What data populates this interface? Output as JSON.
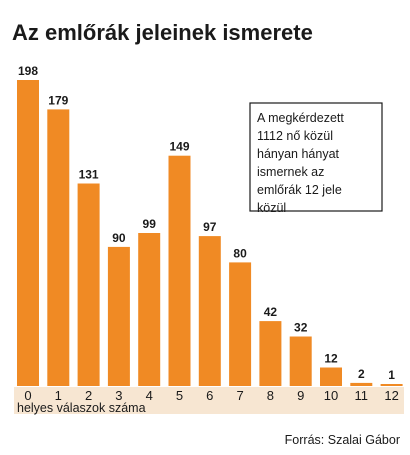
{
  "chart_data": {
    "type": "bar",
    "title": "Az emlőrák jeleinek ismerete",
    "xlabel": "helyes válaszok száma",
    "ylabel": "",
    "categories": [
      "0",
      "1",
      "2",
      "3",
      "4",
      "5",
      "6",
      "7",
      "8",
      "9",
      "10",
      "11",
      "12"
    ],
    "values": [
      198,
      179,
      131,
      90,
      99,
      149,
      97,
      80,
      42,
      32,
      12,
      2,
      1
    ],
    "ylim": [
      0,
      198
    ],
    "grid": false,
    "legend": "none",
    "annotation": [
      "A megkérdezett",
      "1112 nő közül",
      "hányan hányat",
      "ismernek az",
      "emlőrák 12 jele",
      "közül"
    ],
    "source": "Forrás: Szalai Gábor",
    "colors": {
      "bar": "#f08a24",
      "text": "#1a1a1a",
      "band": "#f7e6d2"
    }
  }
}
